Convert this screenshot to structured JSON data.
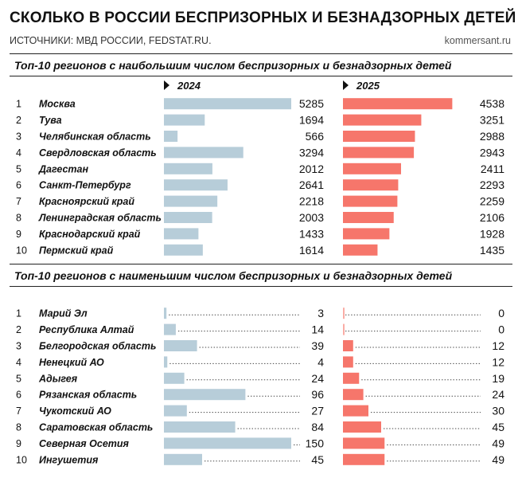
{
  "header": {
    "title": "СКОЛЬКО В РОССИИ БЕСПРИЗОРНЫХ И БЕЗНАДЗОРНЫХ ДЕТЕЙ",
    "sources": "ИСТОЧНИКИ: МВД РОССИИ, FEDSTAT.RU.",
    "site": "kommersant.ru"
  },
  "colors": {
    "bar_2024": "#b7cdd9",
    "bar_2025": "#f6766b",
    "text": "#111111"
  },
  "chart_data": [
    {
      "type": "bar",
      "title": "Топ-10 регионов с наибольшим числом беспризорных и безнадзорных детей",
      "ranks": [
        "1",
        "2",
        "3",
        "4",
        "5",
        "6",
        "7",
        "8",
        "9",
        "10"
      ],
      "categories": [
        "Москва",
        "Тува",
        "Челябинская область",
        "Свердловская область",
        "Дагестан",
        "Санкт-Петербург",
        "Красноярский край",
        "Ленинградская область",
        "Краснодарский край",
        "Пермский край"
      ],
      "series": [
        {
          "name": "2024",
          "values": [
            5285,
            1694,
            566,
            3294,
            2012,
            2641,
            2218,
            2003,
            1433,
            1614
          ]
        },
        {
          "name": "2025",
          "values": [
            4538,
            3251,
            2988,
            2943,
            2411,
            2293,
            2259,
            2106,
            1928,
            1435
          ]
        }
      ]
    },
    {
      "type": "bar",
      "title": "Топ-10 регионов с наименьшим числом беспризорных и безнадзорных детей",
      "ranks": [
        "1",
        "2",
        "3",
        "4",
        "5",
        "6",
        "7",
        "8",
        "9",
        "10"
      ],
      "categories": [
        "Марий Эл",
        "Республика Алтай",
        "Белгородская область",
        "Ненецкий АО",
        "Адыгея",
        "Рязанская область",
        "Чукотский АО",
        "Саратовская область",
        "Северная Осетия",
        "Ингушетия"
      ],
      "series": [
        {
          "name": "2024",
          "values": [
            3,
            14,
            39,
            4,
            24,
            96,
            27,
            84,
            150,
            45
          ]
        },
        {
          "name": "2025",
          "values": [
            0,
            0,
            12,
            12,
            19,
            24,
            30,
            45,
            49,
            49
          ]
        }
      ]
    }
  ]
}
